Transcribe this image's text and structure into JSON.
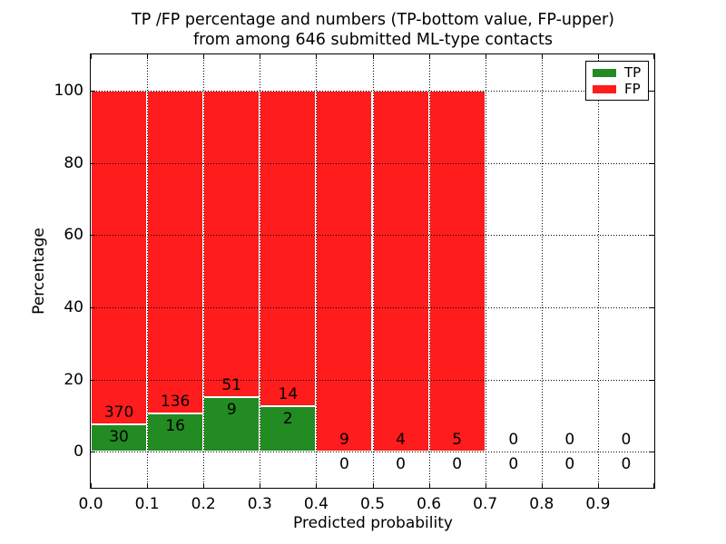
{
  "figure": {
    "title_line1": "TP /FP percentage and numbers (TP-bottom value, FP-upper)",
    "title_line2": "from among 646 submitted ML-type contacts",
    "xlabel": "Predicted probability",
    "ylabel": "Percentage"
  },
  "legend": {
    "items": [
      {
        "label": "TP",
        "color": "#228b22"
      },
      {
        "label": "FP",
        "color": "#ff1c1c"
      }
    ]
  },
  "chart_data": {
    "type": "bar",
    "stacked": true,
    "title": "TP /FP percentage and numbers (TP-bottom value, FP-upper) from among 646 submitted ML-type contacts",
    "title_line1": "TP /FP percentage and numbers (TP-bottom value, FP-upper)",
    "title_line2": "from among 646 submitted ML-type contacts",
    "xlabel": "Predicted probability",
    "ylabel": "Percentage",
    "xlim": [
      0.0,
      1.0
    ],
    "ylim": [
      -10,
      110
    ],
    "grid": true,
    "grid_style": "dotted",
    "legend_position": "upper right",
    "total_contacts": 646,
    "bin_width": 0.1,
    "bin_starts": [
      0.0,
      0.1,
      0.2,
      0.3,
      0.4,
      0.5,
      0.6,
      0.7,
      0.8,
      0.9
    ],
    "xtick_labels": [
      "0.0",
      "0.1",
      "0.2",
      "0.3",
      "0.4",
      "0.5",
      "0.6",
      "0.7",
      "0.8",
      "0.9"
    ],
    "ytick_values": [
      0,
      20,
      40,
      60,
      80,
      100
    ],
    "series": [
      {
        "name": "TP",
        "color": "#228b22",
        "counts": [
          30,
          16,
          9,
          2,
          0,
          0,
          0,
          0,
          0,
          0
        ]
      },
      {
        "name": "FP",
        "color": "#ff1c1c",
        "counts": [
          370,
          136,
          51,
          14,
          9,
          4,
          5,
          0,
          0,
          0
        ]
      }
    ],
    "tp_percent_of_bin": [
      7.5,
      10.53,
      15.0,
      12.5,
      0,
      0,
      0,
      0,
      0,
      0
    ],
    "bar_total_percent": [
      100,
      100,
      100,
      100,
      100,
      100,
      100,
      0,
      0,
      0
    ],
    "annotation_rule": "FP count above green/red boundary, TP count below it"
  }
}
